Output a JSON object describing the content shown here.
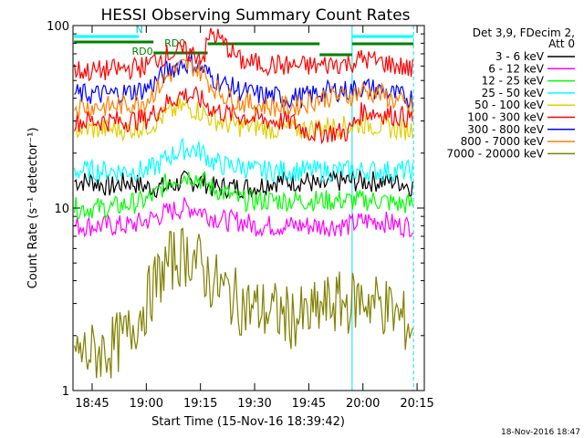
{
  "chart_data": {
    "type": "line",
    "title": "HESSI Observing Summary Count Rates",
    "xlabel": "Start Time (15-Nov-16 18:39:42)",
    "ylabel": "Count Rate (s⁻¹ detector⁻¹)",
    "y_scale": "log",
    "ylim": [
      1,
      100
    ],
    "xlim": [
      "18:39:42",
      "20:17"
    ],
    "x_tick_labels": [
      "18:45",
      "19:00",
      "19:15",
      "19:30",
      "19:45",
      "20:00",
      "20:15"
    ],
    "y_tick_labels": [
      "1",
      "10",
      "100"
    ],
    "grid": false,
    "legend_position": "right",
    "legend_header": [
      "Det 3,9, FDecim 2,",
      "Att 0"
    ],
    "footer": "18-Nov-2016 18:47",
    "x": [
      "18:40",
      "18:45",
      "18:50",
      "18:55",
      "19:00",
      "19:03",
      "19:06",
      "19:10",
      "19:13",
      "19:16",
      "19:18",
      "19:22",
      "19:26",
      "19:30",
      "19:35",
      "19:40",
      "19:45",
      "19:48",
      "19:52",
      "19:56",
      "20:00",
      "20:05",
      "20:10",
      "20:14"
    ],
    "series": [
      {
        "name": "3 - 6 keV",
        "color": "#000000",
        "values": [
          14,
          14,
          13,
          14,
          13,
          13,
          13,
          14,
          14,
          14,
          13,
          13,
          13,
          13,
          14,
          14,
          14,
          13,
          14,
          14,
          14,
          14,
          14,
          13
        ]
      },
      {
        "name": "6 - 12 keV",
        "color": "#ff00ff",
        "values": [
          8,
          8,
          8,
          8,
          8.5,
          9,
          9.5,
          10,
          10,
          9.5,
          9,
          8.5,
          8.5,
          8,
          8,
          8,
          8,
          8,
          8,
          8,
          8.5,
          8.5,
          8,
          8
        ]
      },
      {
        "name": "12 - 25 keV",
        "color": "#00ff00",
        "values": [
          10,
          10,
          10,
          10.5,
          11,
          12,
          14,
          15,
          15,
          14,
          13,
          12,
          11,
          11,
          11,
          11,
          11,
          11,
          11,
          11,
          11,
          11,
          10.5,
          10.5
        ]
      },
      {
        "name": "25 - 50 keV",
        "color": "#00ffff",
        "values": [
          16,
          16,
          16,
          16,
          16,
          17,
          19,
          21,
          21,
          20,
          18,
          17,
          17,
          16,
          16,
          16,
          16,
          16,
          16,
          16,
          16,
          16,
          16,
          16
        ]
      },
      {
        "name": "50 - 100 keV",
        "color": "#e0d000",
        "values": [
          27,
          27,
          27,
          27,
          28,
          30,
          33,
          36,
          35,
          33,
          31,
          29,
          28,
          28,
          27,
          27,
          27,
          28,
          28,
          28,
          29,
          28,
          27,
          27
        ]
      },
      {
        "name": "100 - 300 keV",
        "color": "#ff0000",
        "values": [
          30,
          30,
          30,
          30,
          31,
          34,
          38,
          42,
          41,
          38,
          35,
          33,
          32,
          31,
          30,
          30,
          26,
          26,
          26,
          26,
          34,
          33,
          32,
          31
        ]
      },
      {
        "name": "300 - 800 keV",
        "color": "#0000ff",
        "values": [
          42,
          42,
          42,
          43,
          45,
          50,
          57,
          62,
          62,
          57,
          52,
          47,
          44,
          42,
          41,
          40,
          41,
          43,
          44,
          44,
          46,
          44,
          41,
          40
        ]
      },
      {
        "name": "800 - 7000 keV",
        "color": "#ff8000",
        "values": [
          36,
          36,
          36,
          37,
          39,
          45,
          53,
          60,
          60,
          54,
          47,
          41,
          38,
          37,
          36,
          36,
          38,
          40,
          41,
          41,
          44,
          42,
          38,
          35
        ]
      },
      {
        "name": "7000 - 20000 keV",
        "color": "#808000",
        "values": [
          1.6,
          1.6,
          1.7,
          2,
          3,
          4,
          5,
          5.5,
          5.5,
          4.5,
          4,
          3.5,
          3,
          2.8,
          2.7,
          2.5,
          2.5,
          2.8,
          3,
          3,
          3.2,
          3,
          2.5,
          2.2
        ]
      },
      {
        "name": "",
        "color": "#ff0000",
        "values": [
          57,
          56,
          57,
          58,
          60,
          66,
          70,
          72,
          70,
          68,
          92,
          78,
          64,
          62,
          61,
          60,
          60,
          60,
          62,
          62,
          66,
          63,
          60,
          57
        ]
      }
    ],
    "annotations": [
      {
        "text": "RD0",
        "color": "#008000"
      },
      {
        "text": "RD0",
        "color": "#008000"
      },
      {
        "text": "N",
        "color": "#00c0c0"
      }
    ]
  }
}
